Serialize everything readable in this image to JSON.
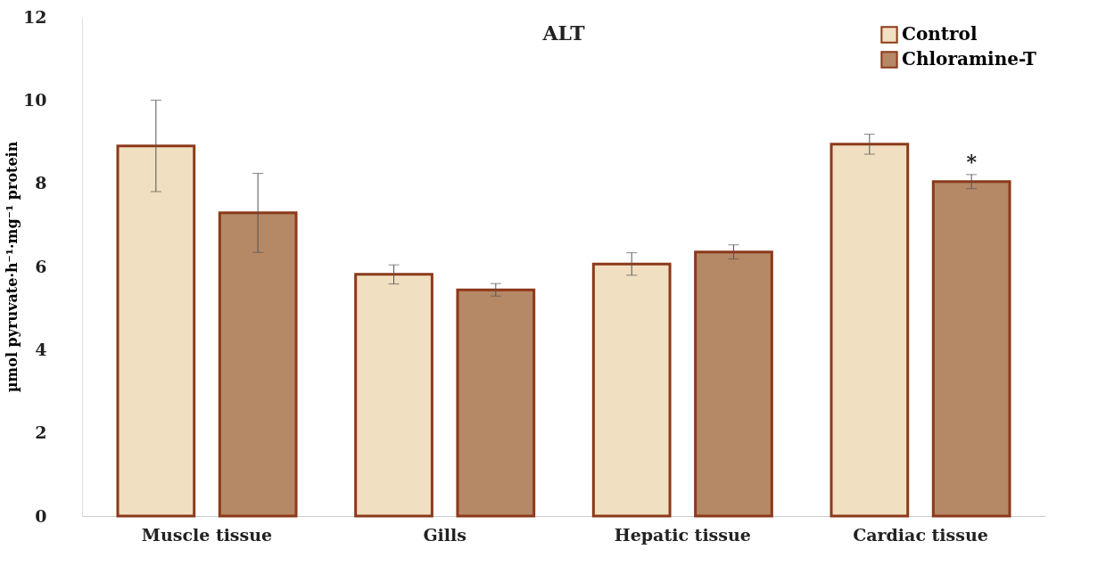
{
  "chart_data": {
    "type": "bar",
    "title": "ALT",
    "ylabel": "µmol pyruvate·h⁻¹·mg⁻¹ protein",
    "categories": [
      "Muscle tissue",
      "Gills",
      "Hepatic tissue",
      "Cardiac tissue"
    ],
    "series": [
      {
        "name": "Control",
        "color": "#f0dfc0",
        "values": [
          8.9,
          5.81,
          6.06,
          8.94
        ],
        "errors": [
          1.1,
          0.23,
          0.27,
          0.24
        ]
      },
      {
        "name": "Chloramine-T",
        "color": "#b58866",
        "values": [
          7.29,
          5.44,
          6.35,
          8.04
        ],
        "errors": [
          0.95,
          0.15,
          0.17,
          0.17
        ]
      }
    ],
    "ylim": [
      0,
      12
    ],
    "yticks": [
      0,
      2,
      4,
      6,
      8,
      10,
      12
    ],
    "annotations": [
      "*"
    ],
    "legend": "top right",
    "grid": false
  }
}
